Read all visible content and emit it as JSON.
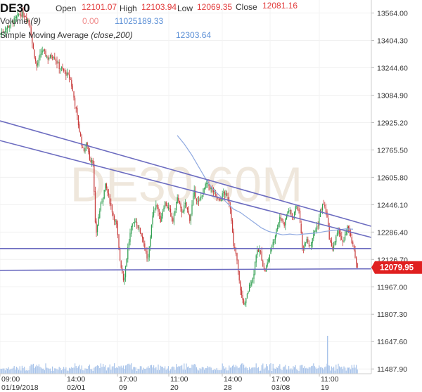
{
  "header": {
    "symbol": "DE30",
    "open_label": "Open",
    "open_value": "12101.07",
    "high_label": "High",
    "high_value": "12103.94",
    "low_label": "Low",
    "low_value": "12069.35",
    "close_label": "Close",
    "close_value": "12081.16",
    "volume_label": "Volume",
    "volume_param": "(9)",
    "volume_value1": "0.00",
    "volume_value2": "11025189.33",
    "sma_label": "Simple Moving Average",
    "sma_param": "(close,200)",
    "sma_value": "12303.64"
  },
  "watermark": "DE30 60M",
  "current_price": "12079.95",
  "colors": {
    "up": "#2e9e4f",
    "down": "#c83a3a",
    "trendline": "#6c6cc0",
    "sma": "#8fa9e0",
    "price_tag": "#e02020",
    "volume": "#a9c4ea"
  },
  "chart_data": {
    "type": "candlestick",
    "y_ticks": [
      "13564.00",
      "13404.30",
      "13244.60",
      "13084.90",
      "12925.20",
      "12765.50",
      "12605.80",
      "12446.10",
      "12286.40",
      "12126.70",
      "11967.00",
      "11807.30",
      "11647.60",
      "11487.90"
    ],
    "ylim": [
      11460,
      13640
    ],
    "x_ticks": [
      {
        "time": "09:00",
        "date": "01/19/2018"
      },
      {
        "time": "14:00",
        "date": "02/01"
      },
      {
        "time": "17:00",
        "date": "09"
      },
      {
        "time": "11:00",
        "date": "20"
      },
      {
        "time": "14:00",
        "date": "28"
      },
      {
        "time": "17:00",
        "date": "03/08"
      },
      {
        "time": "11:00",
        "date": "19"
      }
    ],
    "price_path": [
      [
        0,
        13440
      ],
      [
        10,
        13480
      ],
      [
        20,
        13520
      ],
      [
        28,
        13560
      ],
      [
        36,
        13550
      ],
      [
        42,
        13510
      ],
      [
        46,
        13380
      ],
      [
        52,
        13250
      ],
      [
        60,
        13350
      ],
      [
        68,
        13300
      ],
      [
        76,
        13320
      ],
      [
        84,
        13250
      ],
      [
        92,
        13220
      ],
      [
        100,
        13180
      ],
      [
        106,
        13050
      ],
      [
        112,
        12900
      ],
      [
        118,
        12760
      ],
      [
        124,
        12800
      ],
      [
        128,
        12700
      ],
      [
        132,
        12720
      ],
      [
        136,
        12260
      ],
      [
        142,
        12420
      ],
      [
        150,
        12560
      ],
      [
        156,
        12470
      ],
      [
        160,
        12400
      ],
      [
        166,
        12320
      ],
      [
        170,
        12140
      ],
      [
        176,
        12000
      ],
      [
        182,
        12200
      ],
      [
        186,
        12300
      ],
      [
        192,
        12360
      ],
      [
        198,
        12300
      ],
      [
        204,
        12240
      ],
      [
        210,
        12100
      ],
      [
        216,
        12360
      ],
      [
        222,
        12460
      ],
      [
        228,
        12350
      ],
      [
        234,
        12460
      ],
      [
        240,
        12420
      ],
      [
        246,
        12350
      ],
      [
        252,
        12490
      ],
      [
        258,
        12400
      ],
      [
        264,
        12450
      ],
      [
        270,
        12360
      ],
      [
        276,
        12520
      ],
      [
        282,
        12450
      ],
      [
        288,
        12520
      ],
      [
        294,
        12570
      ],
      [
        300,
        12540
      ],
      [
        306,
        12510
      ],
      [
        312,
        12460
      ],
      [
        318,
        12520
      ],
      [
        324,
        12480
      ],
      [
        328,
        12420
      ],
      [
        332,
        12200
      ],
      [
        336,
        12150
      ],
      [
        340,
        12000
      ],
      [
        344,
        11900
      ],
      [
        348,
        11860
      ],
      [
        352,
        11930
      ],
      [
        356,
        11990
      ],
      [
        360,
        12020
      ],
      [
        364,
        12160
      ],
      [
        370,
        12180
      ],
      [
        376,
        12050
      ],
      [
        380,
        12100
      ],
      [
        386,
        12200
      ],
      [
        392,
        12280
      ],
      [
        398,
        12380
      ],
      [
        404,
        12330
      ],
      [
        410,
        12420
      ],
      [
        416,
        12370
      ],
      [
        422,
        12450
      ],
      [
        426,
        12380
      ],
      [
        430,
        12180
      ],
      [
        436,
        12260
      ],
      [
        440,
        12200
      ],
      [
        446,
        12280
      ],
      [
        452,
        12330
      ],
      [
        456,
        12420
      ],
      [
        460,
        12450
      ],
      [
        464,
        12400
      ],
      [
        468,
        12260
      ],
      [
        472,
        12180
      ],
      [
        476,
        12230
      ],
      [
        482,
        12300
      ],
      [
        488,
        12210
      ],
      [
        494,
        12330
      ],
      [
        498,
        12260
      ],
      [
        502,
        12200
      ],
      [
        506,
        12120
      ],
      [
        509,
        12081
      ]
    ],
    "sma_path": [
      [
        252,
        12850
      ],
      [
        262,
        12800
      ],
      [
        272,
        12740
      ],
      [
        282,
        12670
      ],
      [
        292,
        12600
      ],
      [
        302,
        12540
      ],
      [
        312,
        12500
      ],
      [
        322,
        12460
      ],
      [
        332,
        12420
      ],
      [
        342,
        12400
      ],
      [
        352,
        12370
      ],
      [
        362,
        12340
      ],
      [
        372,
        12310
      ],
      [
        382,
        12290
      ],
      [
        392,
        12280
      ],
      [
        402,
        12270
      ],
      [
        412,
        12275
      ],
      [
        422,
        12270
      ],
      [
        432,
        12275
      ],
      [
        442,
        12278
      ],
      [
        452,
        12282
      ],
      [
        462,
        12290
      ],
      [
        472,
        12295
      ],
      [
        482,
        12300
      ],
      [
        492,
        12305
      ],
      [
        502,
        12303
      ]
    ],
    "trendlines": [
      {
        "x1": 0,
        "y1": 12935,
        "x2": 528,
        "y2": 12320
      },
      {
        "x1": 0,
        "y1": 12820,
        "x2": 528,
        "y2": 12255
      },
      {
        "x1": 0,
        "y1": 12190,
        "x2": 528,
        "y2": 12190
      },
      {
        "x1": 0,
        "y1": 12063,
        "x2": 528,
        "y2": 12072
      }
    ]
  }
}
